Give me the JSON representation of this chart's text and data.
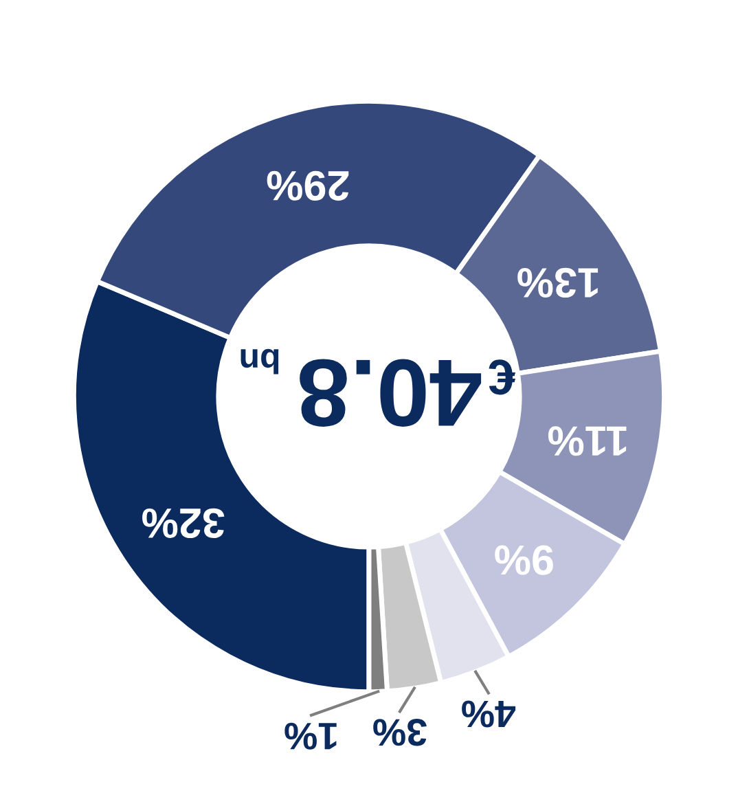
{
  "chart_data": {
    "type": "donut",
    "categories": [
      null,
      null,
      null,
      null,
      null,
      null,
      null,
      null
    ],
    "values": [
      32,
      29,
      13,
      11,
      9,
      4,
      3,
      1
    ],
    "colors": [
      "#0b2a5e",
      "#34487c",
      "#5c6894",
      "#8d94b8",
      "#c3c5de",
      "#e1e2ee",
      "#c8c8c8",
      "#7f7f7f"
    ],
    "value_labels": [
      "32%",
      "29%",
      "13%",
      "11%",
      "9%",
      "4%",
      "3%",
      "1%"
    ],
    "annotations": [
      "€",
      "40.8",
      "bn"
    ]
  }
}
